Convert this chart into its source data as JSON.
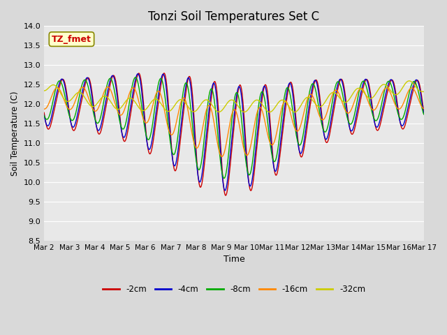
{
  "title": "Tonzi Soil Temperatures Set C",
  "xlabel": "Time",
  "ylabel": "Soil Temperature (C)",
  "ylim": [
    8.5,
    14.0
  ],
  "yticks": [
    8.5,
    9.0,
    9.5,
    10.0,
    10.5,
    11.0,
    11.5,
    12.0,
    12.5,
    13.0,
    13.5,
    14.0
  ],
  "xtick_labels": [
    "Mar 2",
    "Mar 3",
    "Mar 4",
    "Mar 5",
    "Mar 6",
    "Mar 7",
    "Mar 8",
    "Mar 9",
    "Mar 10",
    "Mar 11",
    "Mar 12",
    "Mar 13",
    "Mar 14",
    "Mar 15",
    "Mar 16",
    "Mar 17"
  ],
  "line_colors": {
    "-2cm": "#cc0000",
    "-4cm": "#0000cc",
    "-8cm": "#00aa00",
    "-16cm": "#ff8800",
    "-32cm": "#cccc00"
  },
  "legend_labels": [
    "-2cm",
    "-4cm",
    "-8cm",
    "-16cm",
    "-32cm"
  ],
  "annotation_text": "TZ_fmet",
  "annotation_bg": "#ffffcc",
  "annotation_border": "#888800",
  "annotation_text_color": "#cc0000",
  "fig_bg_color": "#d9d9d9",
  "plot_bg_color": "#e8e8e8",
  "grid_color": "#ffffff",
  "title_fontsize": 12,
  "n_points": 1500
}
